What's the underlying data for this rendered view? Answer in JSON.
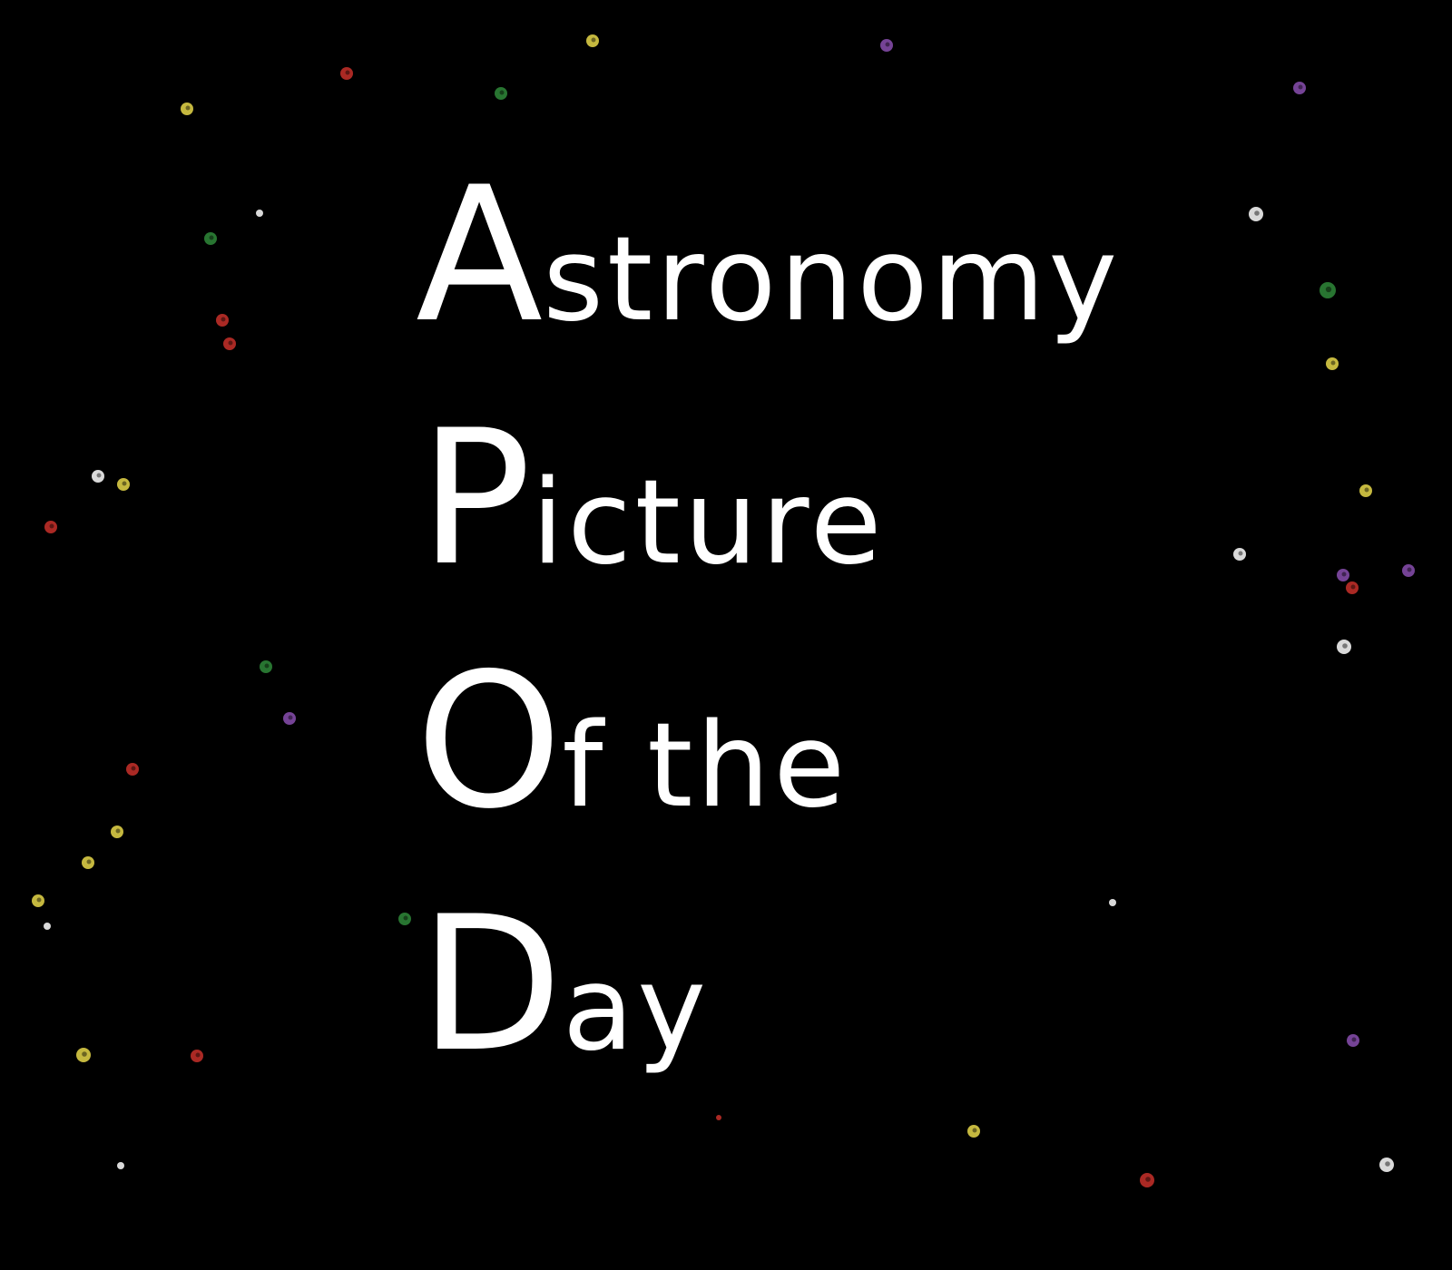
{
  "background_color": "#000000",
  "text_color": "#ffffff",
  "title": {
    "lines": [
      {
        "cap": "A",
        "rest": "stronomy"
      },
      {
        "cap": "P",
        "rest": "icture"
      },
      {
        "cap": "O",
        "rest": "f the"
      },
      {
        "cap": "D",
        "rest": "ay"
      }
    ]
  },
  "star_colors": {
    "white": "#ffffff",
    "yellow": "#e8d84a",
    "red": "#c8302a",
    "green": "#2f8a3a",
    "purple": "#8a4fb0"
  }
}
